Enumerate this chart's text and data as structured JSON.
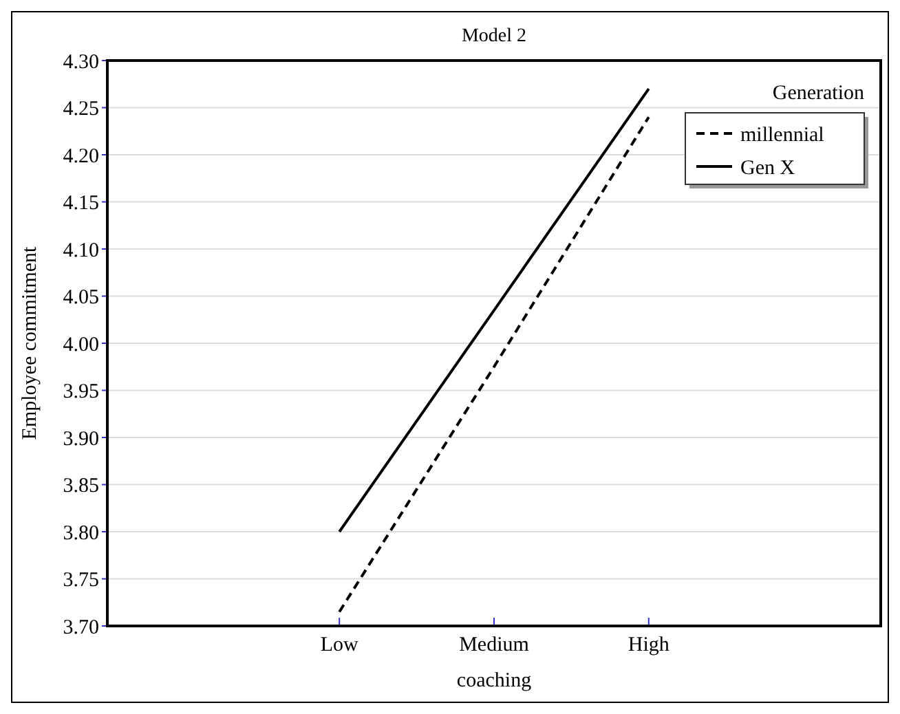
{
  "chart_data": {
    "type": "line",
    "title": "Model 2",
    "xlabel": "coaching",
    "ylabel": "Employee commitment",
    "legend_title": "Generation",
    "categories": [
      null,
      "Low",
      "Medium",
      "High",
      null
    ],
    "series": [
      {
        "name": "millennial",
        "color": "#000000",
        "line_style": "dashed",
        "values": [
          null,
          3.715,
          3.975,
          4.24,
          null
        ]
      },
      {
        "name": "Gen X",
        "color": "#000000",
        "line_style": "solid",
        "values": [
          null,
          3.8,
          4.035,
          4.27,
          null
        ]
      }
    ],
    "ylim": [
      3.7,
      4.3
    ],
    "yticks": [
      {
        "value": 3.7,
        "label": "3.70"
      },
      {
        "value": 3.75,
        "label": "3.75"
      },
      {
        "value": 3.8,
        "label": "3.80"
      },
      {
        "value": 3.85,
        "label": "3.85"
      },
      {
        "value": 3.9,
        "label": "3.90"
      },
      {
        "value": 3.95,
        "label": "3.95"
      },
      {
        "value": 4.0,
        "label": "4.00"
      },
      {
        "value": 4.05,
        "label": "4.05"
      },
      {
        "value": 4.1,
        "label": "4.10"
      },
      {
        "value": 4.15,
        "label": "4.15"
      },
      {
        "value": 4.2,
        "label": "4.20"
      },
      {
        "value": 4.25,
        "label": "4.25"
      },
      {
        "value": 4.3,
        "label": "4.30"
      }
    ],
    "grid": "y",
    "legend": "top right",
    "marker": "none"
  }
}
